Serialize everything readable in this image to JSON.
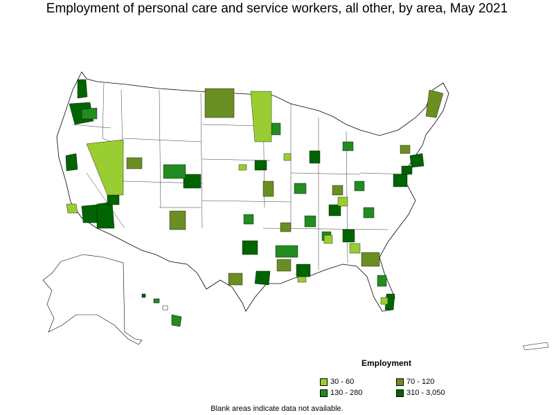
{
  "title": "Employment of personal care and service workers, all other, by area, May 2021",
  "legend": {
    "title": "Employment",
    "items": [
      {
        "label": "30 - 60",
        "color": "#9acd32"
      },
      {
        "label": "70 - 120",
        "color": "#6b8e23"
      },
      {
        "label": "130 - 280",
        "color": "#228b22"
      },
      {
        "label": "310 - 3,050",
        "color": "#006400"
      }
    ]
  },
  "footnote": "Blank areas indicate data not available.",
  "colors": {
    "no_data": "#ffffff",
    "border": "#000000"
  }
}
